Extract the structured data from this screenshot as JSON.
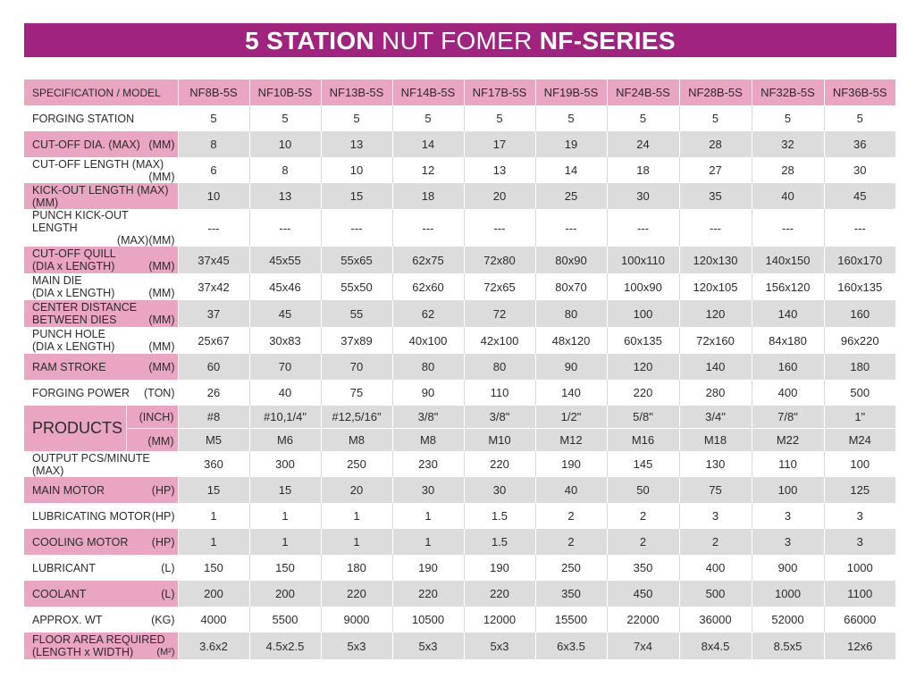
{
  "title": {
    "part1": "5 STATION",
    "part2": "NUT FOMER",
    "part3": "NF-SERIES"
  },
  "header": {
    "label": "SPECIFICATION / MODEL",
    "models": [
      "NF8B-5S",
      "NF10B-5S",
      "NF13B-5S",
      "NF14B-5S",
      "NF17B-5S",
      "NF19B-5S",
      "NF24B-5S",
      "NF28B-5S",
      "NF32B-5S",
      "NF36B-5S"
    ]
  },
  "rows": [
    {
      "id": "forging-station",
      "line1": "FORGING STATION",
      "unit": "",
      "values": [
        "5",
        "5",
        "5",
        "5",
        "5",
        "5",
        "5",
        "5",
        "5",
        "5"
      ]
    },
    {
      "id": "cut-off-dia",
      "line1": "CUT-OFF DIA. (MAX)",
      "unit": "(MM)",
      "values": [
        "8",
        "10",
        "13",
        "14",
        "17",
        "19",
        "24",
        "28",
        "32",
        "36"
      ]
    },
    {
      "id": "cut-off-length",
      "line1": "CUT-OFF LENGTH (MAX)",
      "line2": "",
      "unit": "(MM)",
      "values": [
        "6",
        "8",
        "10",
        "12",
        "13",
        "14",
        "18",
        "27",
        "28",
        "30"
      ]
    },
    {
      "id": "kick-out-length",
      "line1": "KICK-OUT LENGTH (MAX)(MM)",
      "unit": "",
      "values": [
        "10",
        "13",
        "15",
        "18",
        "20",
        "25",
        "30",
        "35",
        "40",
        "45"
      ]
    },
    {
      "id": "punch-kick-out-length",
      "line1": "PUNCH KICK-OUT LENGTH",
      "line2": "",
      "unit": "(MAX)(MM)",
      "values": [
        "---",
        "---",
        "---",
        "---",
        "---",
        "---",
        "---",
        "---",
        "---",
        "---"
      ]
    },
    {
      "id": "cut-off-quill",
      "line1": "CUT-OFF QUILL",
      "line2": "(DIA x LENGTH)",
      "unit": "(MM)",
      "values": [
        "37x45",
        "45x55",
        "55x65",
        "62x75",
        "72x80",
        "80x90",
        "100x110",
        "120x130",
        "140x150",
        "160x170"
      ]
    },
    {
      "id": "main-die",
      "line1": "MAIN DIE",
      "line2": "(DIA x LENGTH)",
      "unit": "(MM)",
      "values": [
        "37x42",
        "45x46",
        "55x50",
        "62x60",
        "72x65",
        "80x70",
        "100x90",
        "120x105",
        "156x120",
        "160x135"
      ]
    },
    {
      "id": "center-distance",
      "line1": "CENTER DISTANCE",
      "line2": "BETWEEN DIES",
      "unit": "(MM)",
      "values": [
        "37",
        "45",
        "55",
        "62",
        "72",
        "80",
        "100",
        "120",
        "140",
        "160"
      ]
    },
    {
      "id": "punch-hole",
      "line1": "PUNCH HOLE",
      "line2": "(DIA x LENGTH)",
      "unit": "(MM)",
      "values": [
        "25x67",
        "30x83",
        "37x89",
        "40x100",
        "42x100",
        "48x120",
        "60x135",
        "72x160",
        "84x180",
        "96x220"
      ]
    },
    {
      "id": "ram-stroke",
      "line1": "RAM STROKE",
      "unit": "(MM)",
      "values": [
        "60",
        "70",
        "70",
        "80",
        "80",
        "90",
        "120",
        "140",
        "160",
        "180"
      ]
    },
    {
      "id": "forging-power",
      "line1": "FORGING POWER",
      "unit": "(TON)",
      "values": [
        "26",
        "40",
        "75",
        "90",
        "110",
        "140",
        "220",
        "280",
        "400",
        "500"
      ]
    }
  ],
  "products": {
    "label": "PRODUCTS",
    "inch": {
      "unit": "(INCH)",
      "values": [
        "#8",
        "#10,1/4\"",
        "#12,5/16\"",
        "3/8\"",
        "3/8\"",
        "1/2\"",
        "5/8\"",
        "3/4\"",
        "7/8\"",
        "1\""
      ]
    },
    "mm": {
      "unit": "(MM)",
      "values": [
        "M5",
        "M6",
        "M8",
        "M8",
        "M10",
        "M12",
        "M16",
        "M18",
        "M22",
        "M24"
      ]
    }
  },
  "rows2": [
    {
      "id": "output",
      "line1": "OUTPUT PCS/MINUTE (MAX)",
      "unit": "",
      "values": [
        "360",
        "300",
        "250",
        "230",
        "220",
        "190",
        "145",
        "130",
        "110",
        "100"
      ]
    },
    {
      "id": "main-motor",
      "line1": "MAIN MOTOR",
      "unit": "(HP)",
      "values": [
        "15",
        "15",
        "20",
        "30",
        "30",
        "40",
        "50",
        "75",
        "100",
        "125"
      ]
    },
    {
      "id": "lubricating-motor",
      "line1": "LUBRICATING MOTOR",
      "unit": "(HP)",
      "values": [
        "1",
        "1",
        "1",
        "1",
        "1.5",
        "2",
        "2",
        "3",
        "3",
        "3"
      ]
    },
    {
      "id": "cooling-motor",
      "line1": "COOLING MOTOR",
      "unit": "(HP)",
      "values": [
        "1",
        "1",
        "1",
        "1",
        "1.5",
        "2",
        "2",
        "2",
        "3",
        "3"
      ]
    },
    {
      "id": "lubricant",
      "line1": "LUBRICANT",
      "unit": "(L)",
      "values": [
        "150",
        "150",
        "180",
        "190",
        "190",
        "250",
        "350",
        "400",
        "900",
        "1000"
      ]
    },
    {
      "id": "coolant",
      "line1": "COOLANT",
      "unit": "(L)",
      "values": [
        "200",
        "200",
        "220",
        "220",
        "220",
        "350",
        "450",
        "500",
        "1000",
        "1100"
      ]
    },
    {
      "id": "approx-wt",
      "line1": "APPROX. WT",
      "unit": "(KG)",
      "values": [
        "4000",
        "5500",
        "9000",
        "10500",
        "12000",
        "15500",
        "22000",
        "36000",
        "52000",
        "66000"
      ]
    },
    {
      "id": "floor-area",
      "line1": "FLOOR AREA REQUIRED",
      "line2": "(LENGTH x WIDTH)",
      "unit": "(M²)",
      "values": [
        "3.6x2",
        "4.5x2.5",
        "5x3",
        "5x3",
        "5x3",
        "6x3.5",
        "7x4",
        "8x4.5",
        "8.5x5",
        "12x6"
      ]
    }
  ]
}
